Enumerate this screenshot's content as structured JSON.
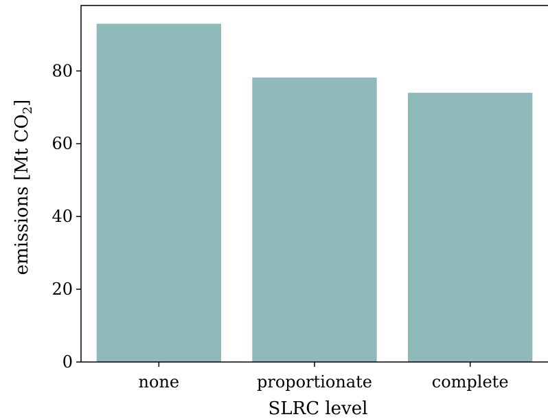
{
  "chart_data": {
    "type": "bar",
    "categories": [
      "none",
      "proportionate",
      "complete"
    ],
    "values": [
      93,
      78.2,
      74
    ],
    "xlabel": "SLRC level",
    "ylabel": {
      "main": "emissions [Mt CO",
      "subscript": "2",
      "suffix": "]"
    },
    "ylim": [
      0,
      98
    ],
    "yticks": [
      0,
      20,
      40,
      60,
      80
    ],
    "grid": false,
    "bar_color": "#8fb9ba"
  }
}
